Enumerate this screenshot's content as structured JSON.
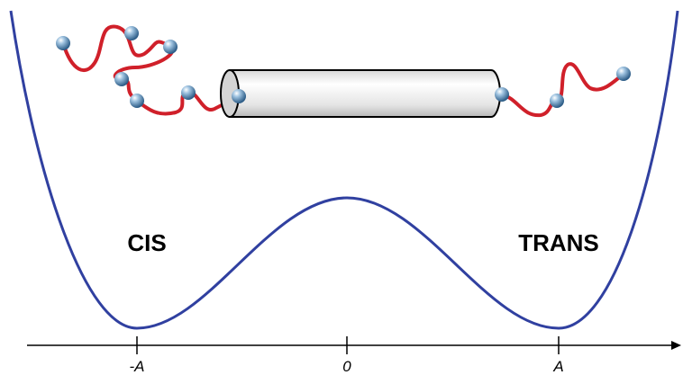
{
  "labels": {
    "cis": "CIS",
    "trans": "TRANS"
  },
  "axis": {
    "ticks": [
      "-A",
      "0",
      "A"
    ]
  }
}
